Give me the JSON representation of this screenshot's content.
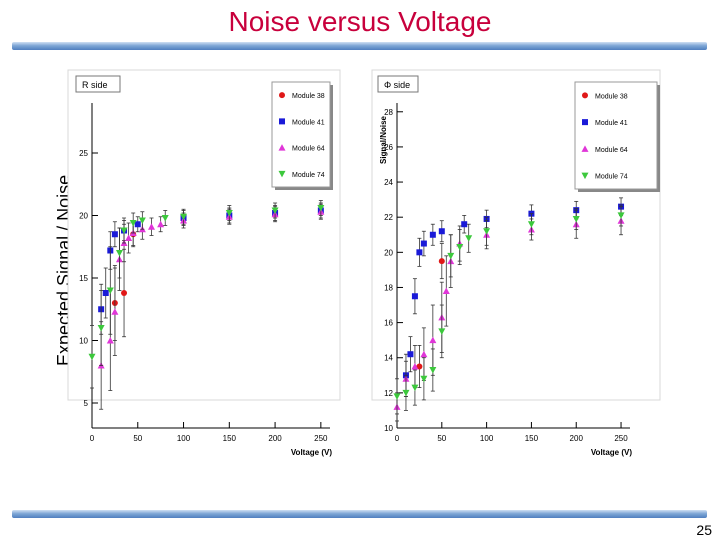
{
  "slide": {
    "title": "Noise versus Voltage",
    "ylabel": "Expected Signal / Noise",
    "page_number": "25"
  },
  "chart_data": [
    {
      "type": "scatter",
      "title": "R side",
      "xlabel": "Voltage (V)",
      "ylabel": "",
      "xlim": [
        0,
        260
      ],
      "ylim": [
        3,
        29
      ],
      "xticks": [
        0,
        50,
        100,
        150,
        200,
        250
      ],
      "yticks": [
        5,
        10,
        15,
        20,
        25
      ],
      "grid": false,
      "legend_position": "top-right",
      "series": [
        {
          "name": "Module 38",
          "color": "#e01818",
          "marker": "circle",
          "points": [
            [
              25,
              13.0,
              3.0
            ],
            [
              35,
              13.8,
              3.5
            ],
            [
              45,
              18.5,
              1.0
            ]
          ]
        },
        {
          "name": "Module 41",
          "color": "#1a1ad8",
          "marker": "square",
          "points": [
            [
              10,
              12.5,
              2.0
            ],
            [
              15,
              13.8,
              2.0
            ],
            [
              20,
              17.2,
              1.5
            ],
            [
              25,
              18.5,
              1.0
            ],
            [
              35,
              18.8,
              0.8
            ],
            [
              50,
              19.3,
              0.6
            ],
            [
              100,
              19.8,
              0.6
            ],
            [
              150,
              20.0,
              0.6
            ],
            [
              200,
              20.2,
              0.6
            ],
            [
              250,
              20.4,
              0.6
            ]
          ]
        },
        {
          "name": "Module 64",
          "color": "#e036d8",
          "marker": "triangle-up",
          "points": [
            [
              10,
              8.0,
              3.5
            ],
            [
              20,
              10.0,
              4.0
            ],
            [
              25,
              12.3,
              3.5
            ],
            [
              30,
              16.5,
              2.5
            ],
            [
              35,
              17.8,
              1.5
            ],
            [
              40,
              18.2,
              1.2
            ],
            [
              45,
              18.6,
              1.0
            ],
            [
              55,
              18.9,
              0.8
            ],
            [
              65,
              19.1,
              0.7
            ],
            [
              75,
              19.3,
              0.6
            ],
            [
              100,
              19.6,
              0.6
            ],
            [
              150,
              19.9,
              0.6
            ],
            [
              200,
              20.1,
              0.6
            ],
            [
              250,
              20.3,
              0.6
            ]
          ]
        },
        {
          "name": "Module 74",
          "color": "#3cc83c",
          "marker": "triangle-down",
          "points": [
            [
              0,
              8.7,
              2.5
            ],
            [
              10,
              11.0,
              3.0
            ],
            [
              20,
              14.0,
              3.5
            ],
            [
              30,
              17.0,
              2.0
            ],
            [
              35,
              18.8,
              1.0
            ],
            [
              45,
              19.4,
              0.8
            ],
            [
              55,
              19.6,
              0.7
            ],
            [
              80,
              19.8,
              0.6
            ],
            [
              100,
              19.9,
              0.6
            ],
            [
              150,
              20.2,
              0.6
            ],
            [
              200,
              20.4,
              0.6
            ],
            [
              250,
              20.6,
              0.6
            ]
          ]
        }
      ]
    },
    {
      "type": "scatter",
      "title": "Φ side",
      "xlabel": "Voltage (V)",
      "ylabel": "Signal/Noise",
      "xlim": [
        0,
        260
      ],
      "ylim": [
        10,
        28.5
      ],
      "xticks": [
        0,
        50,
        100,
        150,
        200,
        250
      ],
      "yticks": [
        10,
        12,
        14,
        16,
        18,
        20,
        22,
        24,
        26,
        28
      ],
      "grid": false,
      "legend_position": "top-right",
      "series": [
        {
          "name": "Module 38",
          "color": "#e01818",
          "marker": "circle",
          "points": [
            [
              25,
              13.5,
              1.2
            ],
            [
              50,
              19.5,
              1.0
            ]
          ]
        },
        {
          "name": "Module 41",
          "color": "#1a1ad8",
          "marker": "square",
          "points": [
            [
              10,
              13.0,
              1.2
            ],
            [
              15,
              14.2,
              1.0
            ],
            [
              20,
              17.5,
              1.0
            ],
            [
              25,
              20.0,
              0.8
            ],
            [
              30,
              20.5,
              0.7
            ],
            [
              40,
              21.0,
              0.6
            ],
            [
              50,
              21.2,
              0.6
            ],
            [
              75,
              21.6,
              0.5
            ],
            [
              100,
              21.9,
              0.5
            ],
            [
              150,
              22.2,
              0.5
            ],
            [
              200,
              22.4,
              0.5
            ],
            [
              250,
              22.6,
              0.5
            ]
          ]
        },
        {
          "name": "Module 64",
          "color": "#e036d8",
          "marker": "triangle-up",
          "points": [
            [
              0,
              11.2,
              0.8
            ],
            [
              10,
              12.8,
              1.0
            ],
            [
              20,
              13.5,
              1.2
            ],
            [
              30,
              14.2,
              1.5
            ],
            [
              40,
              15.0,
              2.0
            ],
            [
              50,
              16.3,
              2.0
            ],
            [
              55,
              17.8,
              2.0
            ],
            [
              60,
              19.5,
              1.5
            ],
            [
              70,
              20.5,
              1.0
            ],
            [
              100,
              21.0,
              0.8
            ],
            [
              150,
              21.3,
              0.6
            ],
            [
              200,
              21.6,
              0.8
            ],
            [
              250,
              21.8,
              0.8
            ]
          ]
        },
        {
          "name": "Module 74",
          "color": "#3cc83c",
          "marker": "triangle-down",
          "points": [
            [
              0,
              11.8,
              1.0
            ],
            [
              10,
              12.0,
              1.0
            ],
            [
              20,
              12.3,
              1.0
            ],
            [
              30,
              12.8,
              1.2
            ],
            [
              40,
              13.3,
              1.2
            ],
            [
              50,
              15.5,
              1.5
            ],
            [
              60,
              19.8,
              1.2
            ],
            [
              70,
              20.3,
              1.0
            ],
            [
              80,
              20.8,
              0.8
            ],
            [
              100,
              21.2,
              0.8
            ],
            [
              150,
              21.6,
              0.6
            ],
            [
              200,
              21.9,
              0.6
            ],
            [
              250,
              22.1,
              0.6
            ]
          ]
        }
      ]
    }
  ]
}
